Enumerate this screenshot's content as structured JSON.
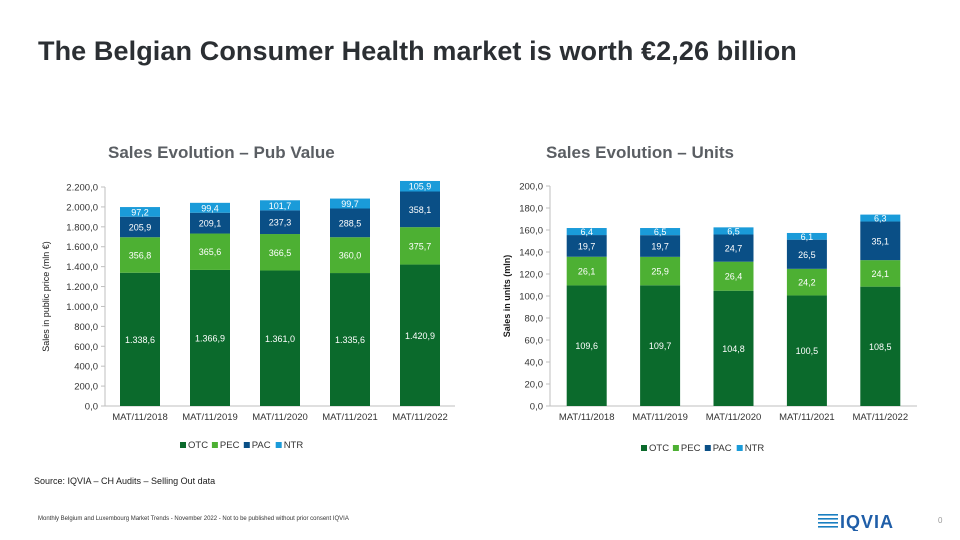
{
  "slide": {
    "title": "The Belgian Consumer Health market is worth €2,26 billion",
    "source": "Source: IQVIA – CH Audits – Selling Out data",
    "footer": "Monthly Belgium and Luxembourg Market Trends - November 2022 - Not to be published without prior consent IQVIA",
    "page_number": "0",
    "logo_text": "IQVIA"
  },
  "colors": {
    "OTC": "#0b6a2c",
    "PEC": "#4db033",
    "PAC": "#0a4f86",
    "NTR": "#1a9bd9"
  },
  "chart_data": [
    {
      "type": "bar",
      "stacked": true,
      "title": "Sales Evolution – Pub Value",
      "xlabel": "",
      "ylabel": "Sales in public price (mln €)",
      "categories": [
        "MAT/11/2018",
        "MAT/11/2019",
        "MAT/11/2020",
        "MAT/11/2021",
        "MAT/11/2022"
      ],
      "series": [
        {
          "name": "OTC",
          "values": [
            1338.6,
            1366.9,
            1361.0,
            1335.6,
            1420.9
          ],
          "labels": [
            "1.338,6",
            "1.366,9",
            "1.361,0",
            "1.335,6",
            "1.420,9"
          ]
        },
        {
          "name": "PEC",
          "values": [
            356.8,
            365.6,
            366.5,
            360.0,
            375.7
          ],
          "labels": [
            "356,8",
            "365,6",
            "366,5",
            "360,0",
            "375,7"
          ]
        },
        {
          "name": "PAC",
          "values": [
            205.9,
            209.1,
            237.3,
            288.5,
            358.1
          ],
          "labels": [
            "205,9",
            "209,1",
            "237,3",
            "288,5",
            "358,1"
          ]
        },
        {
          "name": "NTR",
          "values": [
            97.2,
            99.4,
            101.7,
            99.7,
            105.9
          ],
          "labels": [
            "97,2",
            "99,4",
            "101,7",
            "99,7",
            "105,9"
          ]
        }
      ],
      "ylim": [
        0,
        2200
      ],
      "yticks": [
        0,
        200,
        400,
        600,
        800,
        1000,
        1200,
        1400,
        1600,
        1800,
        2000,
        2200
      ],
      "ytick_labels": [
        "0,0",
        "200,0",
        "400,0",
        "600,0",
        "800,0",
        "1.000,0",
        "1.200,0",
        "1.400,0",
        "1.600,0",
        "1.800,0",
        "2.000,0",
        "2.200,0"
      ],
      "legend": [
        "OTC",
        "PEC",
        "PAC",
        "NTR"
      ],
      "legend_position": "bottom",
      "grid": false
    },
    {
      "type": "bar",
      "stacked": true,
      "title": "Sales Evolution – Units",
      "xlabel": "",
      "ylabel": "Sales in units (mln)",
      "categories": [
        "MAT/11/2018",
        "MAT/11/2019",
        "MAT/11/2020",
        "MAT/11/2021",
        "MAT/11/2022"
      ],
      "series": [
        {
          "name": "OTC",
          "values": [
            109.6,
            109.7,
            104.8,
            100.5,
            108.5
          ],
          "labels": [
            "109,6",
            "109,7",
            "104,8",
            "100,5",
            "108,5"
          ]
        },
        {
          "name": "PEC",
          "values": [
            26.1,
            25.9,
            26.4,
            24.2,
            24.1
          ],
          "labels": [
            "26,1",
            "25,9",
            "26,4",
            "24,2",
            "24,1"
          ]
        },
        {
          "name": "PAC",
          "values": [
            19.7,
            19.7,
            24.7,
            26.5,
            35.1
          ],
          "labels": [
            "19,7",
            "19,7",
            "24,7",
            "26,5",
            "35,1"
          ]
        },
        {
          "name": "NTR",
          "values": [
            6.4,
            6.5,
            6.5,
            6.1,
            6.3
          ],
          "labels": [
            "6,4",
            "6,5",
            "6,5",
            "6,1",
            "6,3"
          ]
        }
      ],
      "ylim": [
        0,
        200
      ],
      "yticks": [
        0,
        20,
        40,
        60,
        80,
        100,
        120,
        140,
        160,
        180,
        200
      ],
      "ytick_labels": [
        "0,0",
        "20,0",
        "40,0",
        "60,0",
        "80,0",
        "100,0",
        "120,0",
        "140,0",
        "160,0",
        "180,0",
        "200,0"
      ],
      "legend": [
        "OTC",
        "PEC",
        "PAC",
        "NTR"
      ],
      "legend_position": "bottom",
      "grid": false
    }
  ]
}
